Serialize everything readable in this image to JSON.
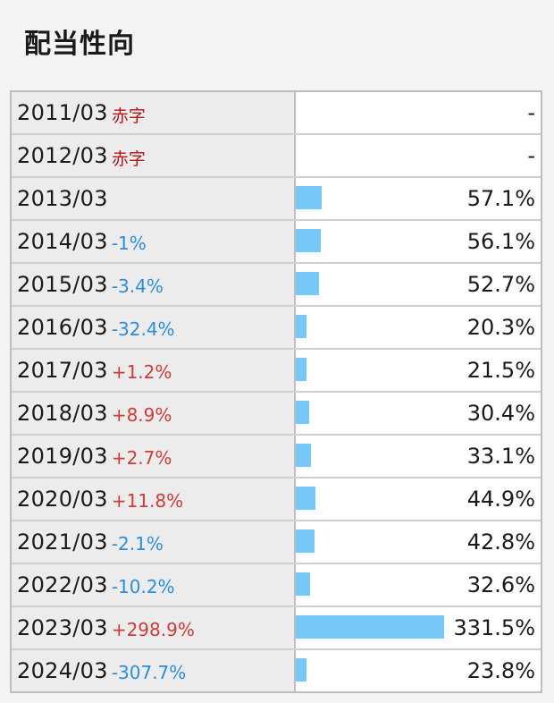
{
  "title": "配当性向",
  "colors": {
    "bar": "#78c8f7",
    "negative_change": "#2a8ee0",
    "positive_change": "#d23a3a",
    "deficit": "#b01818"
  },
  "rows": [
    {
      "year": "2011/03",
      "change": "赤字",
      "change_type": "red",
      "value": "-",
      "ratio": null
    },
    {
      "year": "2012/03",
      "change": "赤字",
      "change_type": "red",
      "value": "-",
      "ratio": null
    },
    {
      "year": "2013/03",
      "change": "",
      "change_type": "",
      "value": "57.1%",
      "ratio": 57.1
    },
    {
      "year": "2014/03",
      "change": "-1%",
      "change_type": "neg",
      "value": "56.1%",
      "ratio": 56.1
    },
    {
      "year": "2015/03",
      "change": "-3.4%",
      "change_type": "neg",
      "value": "52.7%",
      "ratio": 52.7
    },
    {
      "year": "2016/03",
      "change": "-32.4%",
      "change_type": "neg",
      "value": "20.3%",
      "ratio": 20.3
    },
    {
      "year": "2017/03",
      "change": "+1.2%",
      "change_type": "pos",
      "value": "21.5%",
      "ratio": 21.5
    },
    {
      "year": "2018/03",
      "change": "+8.9%",
      "change_type": "pos",
      "value": "30.4%",
      "ratio": 30.4
    },
    {
      "year": "2019/03",
      "change": "+2.7%",
      "change_type": "pos",
      "value": "33.1%",
      "ratio": 33.1
    },
    {
      "year": "2020/03",
      "change": "+11.8%",
      "change_type": "pos",
      "value": "44.9%",
      "ratio": 44.9
    },
    {
      "year": "2021/03",
      "change": "-2.1%",
      "change_type": "neg",
      "value": "42.8%",
      "ratio": 42.8
    },
    {
      "year": "2022/03",
      "change": "-10.2%",
      "change_type": "neg",
      "value": "32.6%",
      "ratio": 32.6
    },
    {
      "year": "2023/03",
      "change": "+298.9%",
      "change_type": "pos",
      "value": "331.5%",
      "ratio": 331.5
    },
    {
      "year": "2024/03",
      "change": "-307.7%",
      "change_type": "neg",
      "value": "23.8%",
      "ratio": 23.8
    }
  ]
}
